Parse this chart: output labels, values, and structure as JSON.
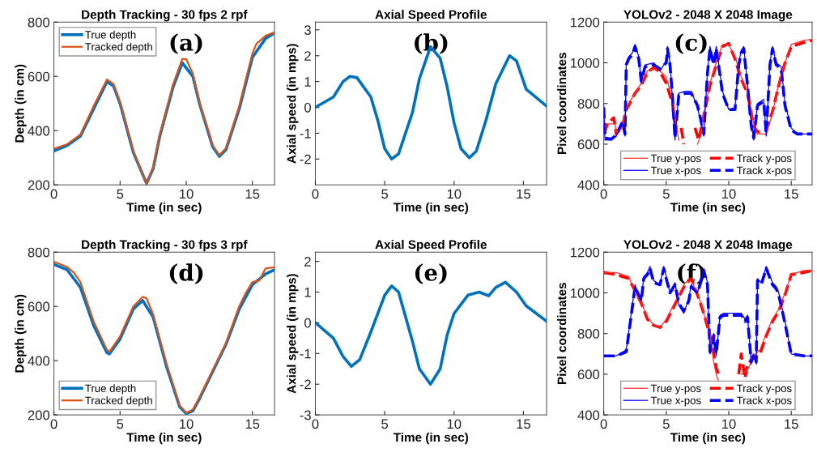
{
  "chart_data": [
    {
      "type": "line",
      "title": "Depth Tracking - 30 fps 2 rpf",
      "xlabel": "Time (in sec)",
      "ylabel": "Depth (in cm)",
      "xlim": [
        0,
        16.67
      ],
      "ylim": [
        200,
        800
      ],
      "xticks": [
        0,
        5,
        10,
        15
      ],
      "yticks": [
        200,
        400,
        600,
        800
      ],
      "legend": "top left",
      "grid": false,
      "annotations": [
        "(a)"
      ],
      "series": [
        {
          "name": "True depth",
          "color": "#0072bd",
          "line_style": "solid",
          "x": [
            0,
            1,
            2,
            3,
            4,
            4.5,
            5,
            6,
            7,
            7.5,
            8,
            9,
            9.7,
            10.5,
            11,
            12,
            12.5,
            13,
            14,
            15,
            16,
            16.67
          ],
          "values": [
            325,
            345,
            380,
            480,
            580,
            565,
            500,
            320,
            205,
            260,
            380,
            560,
            650,
            600,
            500,
            340,
            305,
            330,
            480,
            670,
            740,
            760
          ]
        },
        {
          "name": "Tracked depth",
          "color": "#d95319",
          "line_style": "solid",
          "x": [
            0,
            1,
            2,
            3,
            4,
            4.5,
            5,
            6,
            7,
            7.5,
            8,
            9,
            9.7,
            10,
            10.5,
            11,
            12,
            12.5,
            13,
            14,
            15,
            15.3,
            16,
            16.5,
            16.67
          ],
          "values": [
            333,
            350,
            385,
            490,
            588,
            572,
            505,
            325,
            203,
            265,
            385,
            570,
            665,
            663,
            610,
            505,
            345,
            310,
            335,
            490,
            685,
            720,
            750,
            760,
            755
          ]
        }
      ]
    },
    {
      "type": "line",
      "title": "Axial Speed Profile",
      "xlabel": "Time (in sec)",
      "ylabel": "Axial speed (in mps)",
      "xlim": [
        0,
        16.67
      ],
      "ylim": [
        -3,
        3.3
      ],
      "xticks": [
        0,
        5,
        10,
        15
      ],
      "yticks": [
        -2,
        -1,
        0,
        1,
        2,
        3
      ],
      "grid": false,
      "annotations": [
        "(b)"
      ],
      "series": [
        {
          "color": "#0072bd",
          "line_style": "solid",
          "x": [
            0,
            1.3,
            2,
            2.5,
            3,
            4,
            4.5,
            5,
            5.5,
            6,
            7,
            7.5,
            8.3,
            9,
            9.5,
            10,
            10.5,
            11.1,
            11.6,
            12.3,
            13,
            14,
            14.5,
            15.2,
            16.67
          ],
          "values": [
            0,
            0.4,
            1.0,
            1.2,
            1.15,
            0.4,
            -0.5,
            -1.6,
            -2.0,
            -1.8,
            -0.2,
            1.1,
            2.35,
            1.9,
            0.8,
            -0.6,
            -1.6,
            -1.95,
            -1.7,
            -0.5,
            0.9,
            2.0,
            1.8,
            0.7,
            0.05
          ]
        }
      ]
    },
    {
      "type": "line",
      "title": "YOLOv2 - 2048 X 2048 Image",
      "xlabel": "Time (in sec)",
      "ylabel": "Pixel coordinates",
      "xlim": [
        0,
        16.67
      ],
      "ylim": [
        400,
        1200
      ],
      "xticks": [
        0,
        5,
        10,
        15
      ],
      "yticks": [
        400,
        600,
        800,
        1000,
        1200
      ],
      "legend": "bottom",
      "grid": false,
      "annotations": [
        "(c)"
      ],
      "series": [
        {
          "name": "True y-pos",
          "color": "#ff3030",
          "line_style": "solid",
          "x": [
            0,
            0.2,
            0.9,
            1,
            1.5,
            1.8,
            2.5,
            3,
            3.5,
            4,
            4.5,
            5,
            5.5,
            5.8,
            6,
            6.3,
            6.6,
            7,
            7.5,
            7.8,
            8,
            8.5,
            9,
            9.5,
            10,
            10.5,
            11,
            11.5,
            12,
            12.3,
            13,
            13.5,
            14,
            14.5,
            15,
            16,
            16.67
          ],
          "values": [
            660,
            700,
            700,
            660,
            680,
            780,
            850,
            900,
            960,
            970,
            960,
            930,
            820,
            700,
            620,
            null,
            null,
            null,
            600,
            650,
            750,
            900,
            1000,
            1090,
            1090,
            1030,
            930,
            860,
            700,
            650,
            650,
            750,
            900,
            1000,
            1090,
            1110,
            1115
          ]
        },
        {
          "name": "True x-pos",
          "color": "#0000ff",
          "line_style": "solid",
          "x": [
            0,
            0.1,
            0.6,
            1,
            1.5,
            1.7,
            1.8,
            2,
            2.3,
            2.5,
            2.8,
            3,
            3.3,
            4,
            4.5,
            5,
            5.1,
            5.3,
            5.5,
            5.7,
            6,
            6.5,
            7,
            7.5,
            7.8,
            8,
            8.3,
            8.5,
            8.8,
            9,
            9.3,
            9.5,
            10,
            10.5,
            10.8,
            11,
            11.2,
            11.5,
            11.8,
            12,
            12.3,
            12.8,
            13,
            13.3,
            13.5,
            13.8,
            14.2,
            14.5,
            15,
            15.5,
            16.67
          ],
          "values": [
            790,
            620,
            620,
            640,
            700,
            640,
            1000,
            1030,
            1050,
            1090,
            1030,
            900,
            990,
            1000,
            960,
            1010,
            1080,
            1000,
            820,
            620,
            850,
            860,
            860,
            780,
            700,
            640,
            960,
            1080,
            1000,
            1080,
            950,
            860,
            770,
            780,
            1000,
            1060,
            1080,
            900,
            700,
            620,
            800,
            820,
            640,
            1000,
            1080,
            1000,
            980,
            800,
            680,
            650,
            650
          ]
        },
        {
          "name": "Track y-pos",
          "color": "#ff0000",
          "line_style": "dashed",
          "x": [
            0,
            0.3,
            0.8,
            1,
            1.5,
            1.8,
            2.5,
            3,
            3.5,
            4,
            4.5,
            5,
            5.5,
            5.8,
            6,
            6.2,
            6.4,
            6.6,
            7,
            7.3,
            7.6,
            8,
            8.5,
            9,
            9.5,
            10,
            10.5,
            11,
            11.5,
            12,
            12.3,
            13,
            13.5,
            14,
            14.5,
            15,
            16,
            16.67
          ],
          "values": [
            650,
            700,
            730,
            650,
            690,
            770,
            850,
            890,
            955,
            975,
            955,
            900,
            800,
            650,
            null,
            680,
            600,
            null,
            null,
            680,
            620,
            740,
            890,
            990,
            1080,
            1095,
            1020,
            920,
            850,
            690,
            660,
            670,
            760,
            890,
            1000,
            1080,
            1100,
            1110
          ]
        },
        {
          "name": "Track x-pos",
          "color": "#0000ff",
          "line_style": "dashed",
          "x": [
            0,
            0.1,
            0.6,
            1,
            1.5,
            1.7,
            1.8,
            2,
            2.3,
            2.5,
            2.8,
            3,
            3.3,
            4,
            4.5,
            5,
            5.1,
            5.3,
            5.5,
            5.7,
            6,
            6.5,
            7,
            7.5,
            7.8,
            8,
            8.3,
            8.5,
            8.8,
            9,
            9.3,
            9.5,
            10,
            10.5,
            10.8,
            11,
            11.2,
            11.5,
            11.8,
            12,
            12.3,
            12.8,
            13,
            13.3,
            13.5,
            13.8,
            14.2,
            14.5,
            15,
            15.5,
            16.67
          ],
          "values": [
            780,
            630,
            625,
            645,
            710,
            650,
            990,
            1020,
            1040,
            1080,
            1020,
            910,
            980,
            990,
            970,
            1000,
            1070,
            990,
            830,
            630,
            840,
            850,
            850,
            790,
            710,
            650,
            950,
            1070,
            990,
            1070,
            940,
            850,
            770,
            770,
            990,
            1050,
            1070,
            890,
            690,
            630,
            790,
            810,
            650,
            990,
            1070,
            990,
            970,
            790,
            670,
            650,
            650
          ]
        }
      ]
    },
    {
      "type": "line",
      "title": "Depth Tracking - 30 fps 3 rpf",
      "xlabel": "Time (in sec)",
      "ylabel": "Depth (in cm)",
      "xlim": [
        0,
        16.67
      ],
      "ylim": [
        200,
        800
      ],
      "xticks": [
        0,
        5,
        10,
        15
      ],
      "yticks": [
        200,
        400,
        600,
        800
      ],
      "legend": "bottom left",
      "grid": false,
      "annotations": [
        "(d)"
      ],
      "series": [
        {
          "name": "True depth",
          "color": "#0072bd",
          "line_style": "solid",
          "x": [
            0,
            1,
            2,
            3,
            4,
            4.2,
            5,
            6,
            6.7,
            7.5,
            8.5,
            9.5,
            10,
            10.5,
            11,
            12,
            13,
            14,
            15,
            16,
            16.67
          ],
          "values": [
            755,
            735,
            670,
            530,
            430,
            425,
            480,
            590,
            622,
            560,
            380,
            230,
            205,
            215,
            260,
            360,
            460,
            590,
            680,
            720,
            735
          ]
        },
        {
          "name": "Tracked depth",
          "color": "#d95319",
          "line_style": "solid",
          "x": [
            0,
            0.5,
            1,
            1.5,
            2,
            3,
            4,
            4.2,
            5,
            6,
            6.7,
            7,
            7.5,
            8.5,
            9.5,
            10,
            10.5,
            11,
            12,
            13,
            14,
            14.5,
            15,
            15.5,
            16,
            16.67
          ],
          "values": [
            765,
            755,
            745,
            725,
            690,
            545,
            440,
            433,
            490,
            600,
            635,
            630,
            570,
            390,
            235,
            207,
            220,
            265,
            365,
            465,
            600,
            650,
            690,
            695,
            740,
            745
          ]
        }
      ]
    },
    {
      "type": "line",
      "title": "Axial Speed Profile",
      "xlabel": "Time (in sec)",
      "ylabel": "Axial speed (in mps)",
      "xlim": [
        0,
        16.67
      ],
      "ylim": [
        -3,
        2.3
      ],
      "xticks": [
        0,
        5,
        10,
        15
      ],
      "yticks": [
        -3,
        -2,
        -1,
        0,
        1,
        2
      ],
      "grid": false,
      "annotations": [
        "(e)"
      ],
      "series": [
        {
          "color": "#0072bd",
          "line_style": "solid",
          "x": [
            0,
            1.3,
            2,
            2.6,
            3.2,
            4,
            5,
            5.5,
            6,
            7,
            7.5,
            8.3,
            9,
            9.5,
            10,
            11,
            11.8,
            12.5,
            13,
            13.7,
            14.5,
            15.2,
            16.67
          ],
          "values": [
            0,
            -0.5,
            -1.1,
            -1.42,
            -1.2,
            -0.3,
            0.9,
            1.2,
            1.0,
            -0.6,
            -1.5,
            -2.0,
            -1.5,
            -0.4,
            0.3,
            0.9,
            1.0,
            0.88,
            1.15,
            1.32,
            1.0,
            0.55,
            0.05
          ]
        }
      ]
    },
    {
      "type": "line",
      "title": "YOLOv2 - 2048 X 2048 Image",
      "xlabel": "Time (in sec)",
      "ylabel": "Pixel coordinates",
      "xlim": [
        0,
        16.67
      ],
      "ylim": [
        400,
        1200
      ],
      "xticks": [
        0,
        5,
        10,
        15
      ],
      "yticks": [
        400,
        600,
        800,
        1000,
        1200
      ],
      "legend": "bottom",
      "grid": false,
      "annotations": [
        "(f)"
      ],
      "series": [
        {
          "name": "True y-pos",
          "color": "#ff3030",
          "line_style": "solid",
          "x": [
            0,
            1,
            2,
            2.5,
            3,
            3.5,
            4,
            4.5,
            5,
            5.5,
            6,
            6.5,
            7,
            7.5,
            8,
            8.5,
            8.8,
            9,
            9.2,
            9.5,
            10,
            10.5,
            11,
            11.5,
            12,
            12.5,
            13,
            13.5,
            14,
            14.5,
            15,
            16,
            16.67
          ],
          "values": [
            1100,
            1100,
            1080,
            1000,
            950,
            880,
            840,
            830,
            870,
            930,
            990,
            1050,
            1060,
            1000,
            900,
            800,
            660,
            600,
            560,
            null,
            null,
            null,
            600,
            620,
            690,
            720,
            800,
            870,
            920,
            1000,
            1090,
            1110,
            1110
          ]
        },
        {
          "name": "True x-pos",
          "color": "#0000ff",
          "line_style": "solid",
          "x": [
            0,
            1,
            1.8,
            2.2,
            2.5,
            3,
            3.2,
            3.5,
            3.7,
            4,
            4.5,
            4.8,
            5,
            5.3,
            5.7,
            6,
            6.4,
            6.8,
            7,
            7.5,
            7.8,
            8,
            8.3,
            8.5,
            8.8,
            9,
            9.3,
            9.6,
            10,
            11,
            11.3,
            11.5,
            11.8,
            12,
            12.2,
            12.3,
            12.6,
            13,
            13.5,
            13.8,
            14,
            14.5,
            15,
            16,
            16.67
          ],
          "values": [
            690,
            690,
            720,
            900,
            1040,
            960,
            1080,
            1100,
            1130,
            1060,
            1040,
            1130,
            1080,
            1000,
            1050,
            940,
            900,
            970,
            1040,
            1000,
            1070,
            1120,
            1050,
            700,
            800,
            690,
            890,
            900,
            900,
            900,
            870,
            890,
            650,
            700,
            650,
            1070,
            1050,
            1130,
            1050,
            1030,
            1000,
            860,
            700,
            690,
            690
          ]
        },
        {
          "name": "Track y-pos",
          "color": "#ff0000",
          "line_style": "dashed",
          "x": [
            0,
            1,
            2,
            2.5,
            3,
            3.5,
            4,
            4.5,
            5,
            5.5,
            6,
            6.5,
            7,
            7.5,
            8,
            8.5,
            8.8,
            9,
            9.2,
            9.5,
            10,
            10.5,
            10.8,
            11,
            11.3,
            11.5,
            12,
            12.5,
            13,
            13.5,
            14,
            14.5,
            15,
            16,
            16.67
          ],
          "values": [
            1100,
            1090,
            1070,
            1010,
            950,
            870,
            840,
            830,
            860,
            920,
            980,
            1040,
            1070,
            990,
            900,
            790,
            700,
            630,
            600,
            null,
            null,
            null,
            600,
            700,
            580,
            650,
            680,
            700,
            790,
            860,
            910,
            990,
            1090,
            1100,
            1110
          ]
        },
        {
          "name": "Track x-pos",
          "color": "#0000ff",
          "line_style": "dashed",
          "x": [
            0,
            1,
            1.8,
            2.2,
            2.5,
            3,
            3.2,
            3.5,
            3.7,
            4,
            4.5,
            4.8,
            5,
            5.3,
            5.7,
            6,
            6.4,
            6.8,
            7,
            7.5,
            7.8,
            8,
            8.3,
            8.5,
            8.8,
            9,
            9.3,
            9.6,
            10,
            11,
            11.3,
            11.5,
            11.8,
            12,
            12.2,
            12.3,
            12.6,
            13,
            13.5,
            13.8,
            14,
            14.5,
            15,
            16,
            16.67
          ],
          "values": [
            690,
            690,
            710,
            890,
            1030,
            960,
            1070,
            1090,
            1120,
            1050,
            1040,
            1120,
            1070,
            1000,
            1040,
            950,
            910,
            960,
            1030,
            1000,
            1060,
            1110,
            1040,
            710,
            790,
            700,
            880,
            890,
            890,
            890,
            860,
            880,
            660,
            700,
            660,
            1060,
            1040,
            1120,
            1040,
            1020,
            990,
            850,
            700,
            690,
            690
          ]
        }
      ]
    }
  ]
}
